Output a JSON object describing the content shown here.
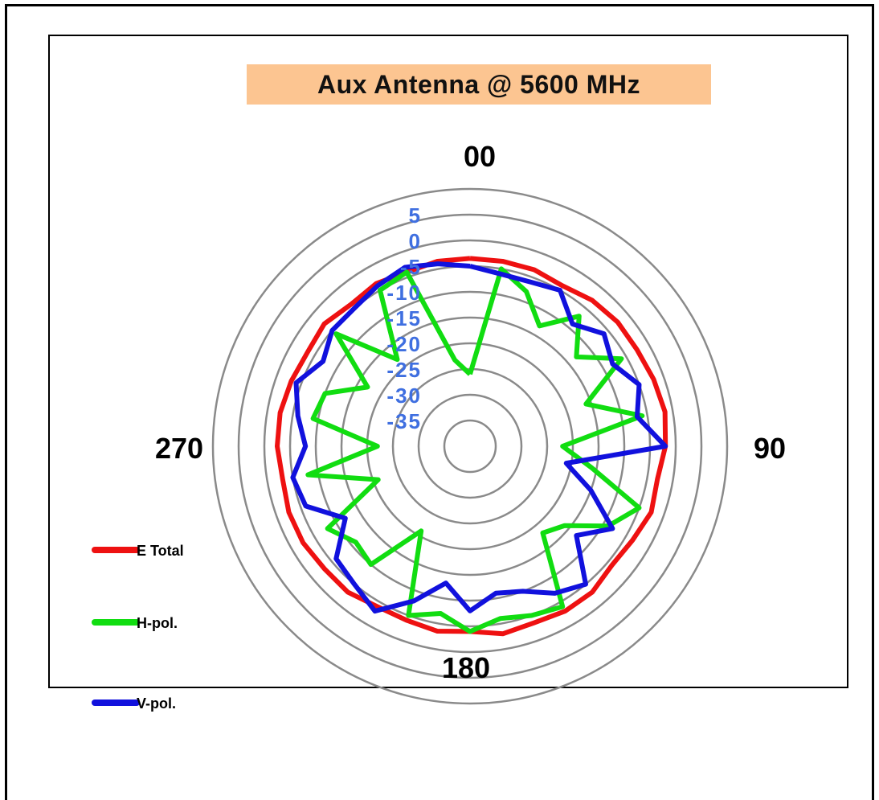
{
  "chart_data": {
    "type": "polar-line",
    "title": "Aux Antenna @ 5600 MHz",
    "angle_labels": [
      {
        "angle": 0,
        "text": "00"
      },
      {
        "angle": 90,
        "text": "90"
      },
      {
        "angle": 180,
        "text": "180"
      },
      {
        "angle": 270,
        "text": "270"
      }
    ],
    "radial_range": [
      -40,
      10
    ],
    "radial_ticks": [
      "5",
      "0",
      "-5",
      "-10",
      "-15",
      "-20",
      "-25",
      "-30",
      "-35"
    ],
    "radial_tick_values": [
      5,
      0,
      -5,
      -10,
      -15,
      -20,
      -25,
      -30,
      -35
    ],
    "grid_rings": [
      -35,
      -30,
      -25,
      -20,
      -15,
      -10,
      -5,
      0,
      5,
      10
    ],
    "legend_placement": "left",
    "angles_deg": [
      0,
      10,
      20,
      30,
      40,
      50,
      60,
      70,
      80,
      90,
      100,
      110,
      120,
      130,
      140,
      150,
      160,
      170,
      180,
      190,
      200,
      210,
      220,
      230,
      240,
      250,
      260,
      270,
      280,
      290,
      300,
      310,
      320,
      330,
      340,
      350
    ],
    "series": [
      {
        "name": "E Total",
        "color": "#ee1111",
        "values": [
          -3.5,
          -3.5,
          -3.5,
          -4,
          -3,
          -2.5,
          -2.5,
          -2,
          -1.5,
          -2,
          -3,
          -2.5,
          -3.5,
          -4,
          -3,
          -3,
          -3.5,
          -3,
          -4,
          -3.5,
          -4,
          -4,
          -3,
          -3,
          -2.5,
          -2.5,
          -3,
          -2.5,
          -2.5,
          -3,
          -3.5,
          -3,
          -4,
          -3.5,
          -4,
          -3.5
        ]
      },
      {
        "name": "H-pol.",
        "color": "#11dd11",
        "values": [
          -26,
          -5,
          -8,
          -13,
          -7,
          -13,
          -6,
          -16,
          -6,
          -22,
          -16,
          -5,
          -9,
          -16,
          -18,
          -4,
          -5,
          -6,
          -4,
          -7,
          -5,
          -21,
          -10,
          -11,
          -8,
          -21,
          -8,
          -22,
          -9,
          -10,
          -17,
          -6,
          -18,
          -5,
          -4,
          -23
        ]
      },
      {
        "name": "V-pol.",
        "color": "#1111dd",
        "values": [
          -5,
          -6,
          -6,
          -5,
          -9,
          -6,
          -8,
          -5,
          -7,
          -2,
          -21,
          -15,
          -8,
          -13,
          -5,
          -7,
          -10,
          -11,
          -8,
          -13,
          -8,
          -3,
          -5,
          -6,
          -12,
          -6,
          -5,
          -8,
          -6,
          -4,
          -7,
          -5,
          -5,
          -4,
          -3,
          -4
        ]
      }
    ]
  }
}
